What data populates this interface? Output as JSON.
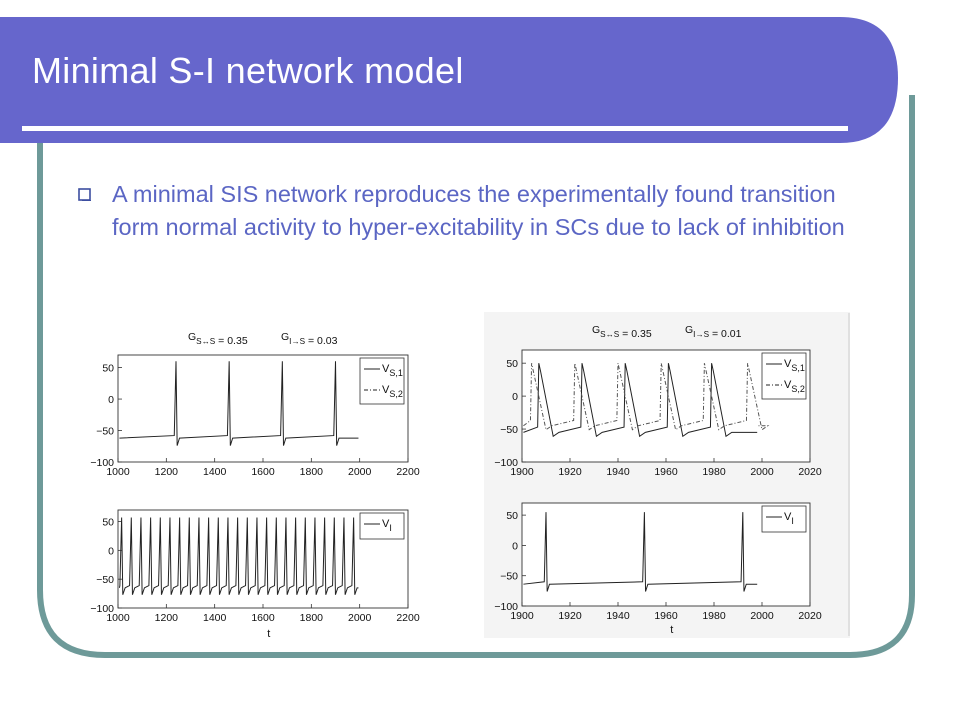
{
  "slide": {
    "title": "Minimal S-I network model",
    "bullet": "A minimal SIS network reproduces the experimentally found transition form normal activity to hyper-excitability in SCs due to lack of inhibition",
    "colors": {
      "title_bar": "#6666cc",
      "frame": "#6e9a99",
      "bullet_text": "#5b66c4"
    },
    "bullet_icon": "hollow-square-icon"
  },
  "chart_data": [
    {
      "type": "line",
      "title": "G_{S↔S} = 0.35    G_{I→S} = 0.03",
      "xlim": [
        1000,
        2200
      ],
      "ylim": [
        -100,
        70
      ],
      "xticks": [
        "1000",
        "1200",
        "1400",
        "1600",
        "1800",
        "2000",
        "2200"
      ],
      "yticks": [
        "50",
        "0",
        "−50",
        "−100"
      ],
      "legend": [
        "V_{S,1}",
        "V_{S,2}"
      ],
      "legend_position": "top-right",
      "spike_times": [
        1240,
        1460,
        1680,
        1900
      ],
      "resting_level": -62,
      "spike_peak": 60
    },
    {
      "type": "line",
      "xlabel": "t",
      "xlim": [
        1000,
        2200
      ],
      "ylim": [
        -100,
        70
      ],
      "xticks": [
        "1000",
        "1200",
        "1400",
        "1600",
        "1800",
        "2000",
        "2200"
      ],
      "yticks": [
        "50",
        "0",
        "−50",
        "−100"
      ],
      "legend": [
        "V_{I}"
      ],
      "legend_position": "top-right",
      "spike_times": [
        1015,
        1055,
        1095,
        1135,
        1175,
        1215,
        1255,
        1295,
        1335,
        1375,
        1415,
        1455,
        1495,
        1535,
        1575,
        1615,
        1655,
        1695,
        1735,
        1775,
        1815,
        1855,
        1895,
        1935,
        1975
      ],
      "resting_level": -65,
      "spike_peak": 57
    },
    {
      "type": "line",
      "title": "G_{S↔S} = 0.35    G_{I→S} = 0.01",
      "xlim": [
        1900,
        2020
      ],
      "ylim": [
        -100,
        70
      ],
      "xticks": [
        "1900",
        "1920",
        "1940",
        "1960",
        "1980",
        "2000",
        "2020"
      ],
      "yticks": [
        "50",
        "0",
        "−50",
        "−100"
      ],
      "legend": [
        "V_{S,1}",
        "V_{S,2}"
      ],
      "legend_position": "top-right",
      "spike_times": [
        1907,
        1925,
        1943,
        1961,
        1979
      ],
      "spike_times_2": [
        1904,
        1922,
        1940,
        1958,
        1976,
        1994
      ],
      "resting_level": -55,
      "spike_peak": 50
    },
    {
      "type": "line",
      "xlabel": "t",
      "xlim": [
        1900,
        2020
      ],
      "ylim": [
        -100,
        70
      ],
      "xticks": [
        "1900",
        "1920",
        "1940",
        "1960",
        "1980",
        "2000",
        "2020"
      ],
      "yticks": [
        "50",
        "0",
        "−50",
        "−100"
      ],
      "legend": [
        "V_{I}"
      ],
      "legend_position": "top-right",
      "spike_times": [
        1910,
        1951,
        1992
      ],
      "resting_level": -64,
      "spike_peak": 55
    }
  ]
}
